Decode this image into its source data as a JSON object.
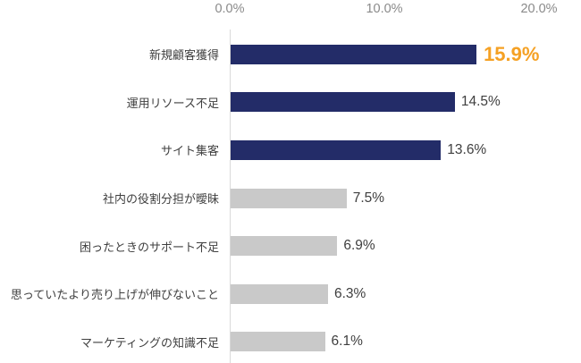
{
  "chart_data": {
    "type": "bar",
    "orientation": "horizontal",
    "title": "",
    "xlabel": "",
    "ylabel": "",
    "categories": [
      "新規顧客獲得",
      "運用リソース不足",
      "サイト集客",
      "社内の役割分担が曖昧",
      "困ったときのサポート不足",
      "思っていたより売り上げが伸びないこと",
      "マーケティングの知識不足"
    ],
    "values": [
      15.9,
      14.5,
      13.6,
      7.5,
      6.9,
      6.3,
      6.1
    ],
    "value_labels": [
      "15.9%",
      "14.5%",
      "13.6%",
      "7.5%",
      "6.9%",
      "6.3%",
      "6.1%"
    ],
    "x_ticks": [
      "0.0%",
      "10.0%",
      "20.0%"
    ],
    "x_tick_values": [
      0,
      10,
      20
    ],
    "xlim": [
      0,
      20
    ],
    "grid": false,
    "legend": false,
    "axis_position": "top",
    "highlight": {
      "index": 0
    },
    "bar_colors": [
      "#232c68",
      "#232c68",
      "#232c68",
      "#c9c9c9",
      "#c9c9c9",
      "#c9c9c9",
      "#c9c9c9"
    ],
    "colors": {
      "primary_bar": "#232c68",
      "secondary_bar": "#c9c9c9",
      "axis_line": "#d9d9d9",
      "tick_text": "#8a8a8a",
      "label_text": "#3f3f3f",
      "value_text": "#3f3f3f",
      "highlight_text": "#f5a124"
    }
  }
}
